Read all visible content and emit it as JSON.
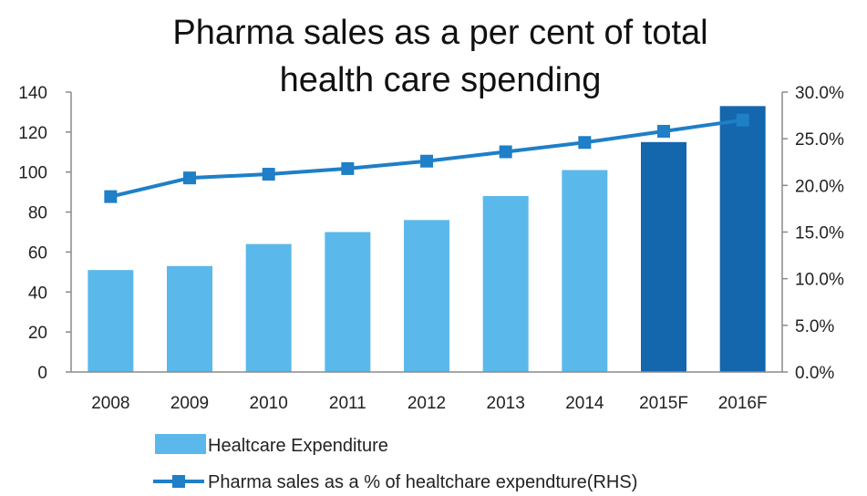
{
  "chart_data": {
    "type": "bar",
    "title_lines": [
      "Pharma sales as a per cent of total",
      "health care spending"
    ],
    "categories": [
      "2008",
      "2009",
      "2010",
      "2011",
      "2012",
      "2013",
      "2014",
      "2015F",
      "2016F"
    ],
    "bar_series": {
      "name": "Healtcare Expenditure",
      "values": [
        51,
        53,
        64,
        70,
        76,
        88,
        101,
        115,
        133
      ],
      "forecast_flags": [
        false,
        false,
        false,
        false,
        false,
        false,
        false,
        true,
        true
      ]
    },
    "line_series": {
      "name": "Pharma sales as a % of healtchare expendture(RHS)",
      "values": [
        18.8,
        20.8,
        21.2,
        21.8,
        22.6,
        23.6,
        24.6,
        25.8,
        27.0
      ]
    },
    "y_left": {
      "min": 0,
      "max": 140,
      "step": 20,
      "tick_labels": [
        "0",
        "20",
        "40",
        "60",
        "80",
        "100",
        "120",
        "140"
      ]
    },
    "y_right": {
      "min": 0,
      "max": 30,
      "step": 5,
      "tick_labels": [
        "0.0%",
        "5.0%",
        "10.0%",
        "15.0%",
        "20.0%",
        "25.0%",
        "30.0%"
      ]
    },
    "grid": false,
    "legend_position": "bottom",
    "colors": {
      "bar_actual": "#5bb8ea",
      "bar_forecast": "#1466ad",
      "line": "#1f7fc7",
      "axis": "#8a8a8a"
    }
  }
}
